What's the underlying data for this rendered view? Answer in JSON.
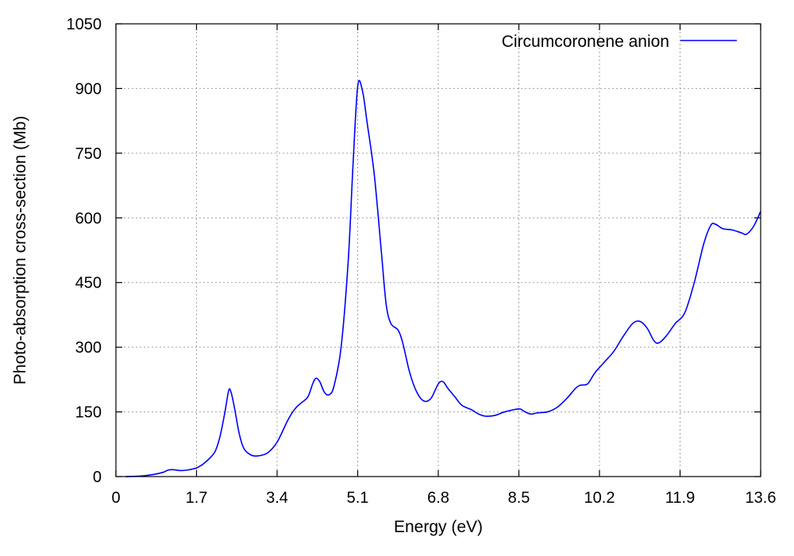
{
  "chart_data": {
    "type": "line",
    "xlabel": "Energy (eV)",
    "ylabel": "Photo-absorption cross-section (Mb)",
    "xlim": [
      0,
      13.6
    ],
    "ylim": [
      0,
      1050
    ],
    "x_ticks": [
      "0",
      "1.7",
      "3.4",
      "5.1",
      "6.8",
      "8.5",
      "10.2",
      "11.9",
      "13.6"
    ],
    "y_ticks": [
      "0",
      "150",
      "300",
      "450",
      "600",
      "750",
      "900",
      "1050"
    ],
    "grid": true,
    "legend_position": "top-right",
    "series": [
      {
        "name": "Circumcoronene anion",
        "color": "#0000ff",
        "points": [
          [
            0.2,
            0
          ],
          [
            0.5,
            1
          ],
          [
            0.8,
            5
          ],
          [
            1.0,
            10
          ],
          [
            1.1,
            15
          ],
          [
            1.2,
            16
          ],
          [
            1.35,
            14
          ],
          [
            1.5,
            15
          ],
          [
            1.7,
            20
          ],
          [
            1.85,
            30
          ],
          [
            2.0,
            45
          ],
          [
            2.1,
            60
          ],
          [
            2.2,
            95
          ],
          [
            2.3,
            150
          ],
          [
            2.38,
            200
          ],
          [
            2.43,
            195
          ],
          [
            2.5,
            160
          ],
          [
            2.6,
            100
          ],
          [
            2.7,
            65
          ],
          [
            2.85,
            50
          ],
          [
            3.0,
            48
          ],
          [
            3.2,
            55
          ],
          [
            3.4,
            80
          ],
          [
            3.6,
            125
          ],
          [
            3.7,
            145
          ],
          [
            3.8,
            160
          ],
          [
            3.9,
            170
          ],
          [
            4.05,
            185
          ],
          [
            4.15,
            215
          ],
          [
            4.22,
            228
          ],
          [
            4.3,
            220
          ],
          [
            4.4,
            195
          ],
          [
            4.5,
            190
          ],
          [
            4.6,
            210
          ],
          [
            4.75,
            300
          ],
          [
            4.9,
            500
          ],
          [
            5.0,
            720
          ],
          [
            5.1,
            905
          ],
          [
            5.2,
            895
          ],
          [
            5.3,
            820
          ],
          [
            5.45,
            700
          ],
          [
            5.6,
            520
          ],
          [
            5.7,
            400
          ],
          [
            5.8,
            355
          ],
          [
            5.95,
            340
          ],
          [
            6.05,
            310
          ],
          [
            6.2,
            240
          ],
          [
            6.35,
            195
          ],
          [
            6.5,
            175
          ],
          [
            6.65,
            182
          ],
          [
            6.8,
            215
          ],
          [
            6.9,
            220
          ],
          [
            7.0,
            205
          ],
          [
            7.15,
            185
          ],
          [
            7.3,
            165
          ],
          [
            7.5,
            155
          ],
          [
            7.65,
            145
          ],
          [
            7.8,
            140
          ],
          [
            8.0,
            142
          ],
          [
            8.2,
            150
          ],
          [
            8.5,
            157
          ],
          [
            8.6,
            152
          ],
          [
            8.75,
            145
          ],
          [
            8.9,
            148
          ],
          [
            9.1,
            150
          ],
          [
            9.3,
            160
          ],
          [
            9.5,
            180
          ],
          [
            9.7,
            205
          ],
          [
            9.8,
            212
          ],
          [
            9.95,
            215
          ],
          [
            10.1,
            240
          ],
          [
            10.3,
            265
          ],
          [
            10.5,
            290
          ],
          [
            10.7,
            325
          ],
          [
            10.9,
            355
          ],
          [
            11.05,
            360
          ],
          [
            11.2,
            345
          ],
          [
            11.35,
            315
          ],
          [
            11.45,
            310
          ],
          [
            11.6,
            325
          ],
          [
            11.8,
            355
          ],
          [
            12.0,
            380
          ],
          [
            12.2,
            450
          ],
          [
            12.4,
            540
          ],
          [
            12.55,
            583
          ],
          [
            12.65,
            585
          ],
          [
            12.8,
            575
          ],
          [
            13.0,
            572
          ],
          [
            13.2,
            565
          ],
          [
            13.3,
            562
          ],
          [
            13.45,
            580
          ],
          [
            13.6,
            615
          ]
        ]
      }
    ]
  }
}
